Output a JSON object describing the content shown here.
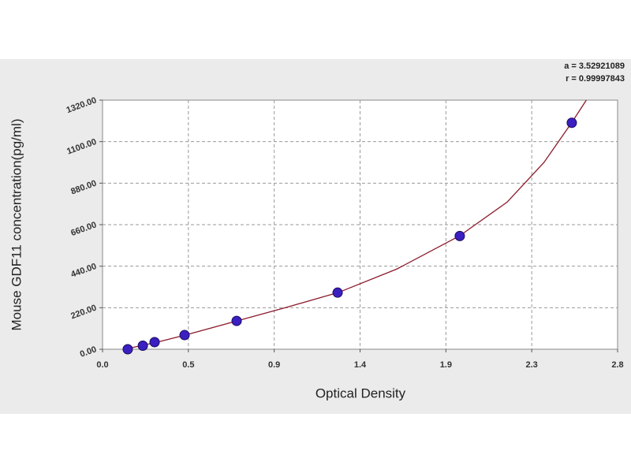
{
  "chart_data": {
    "type": "scatter",
    "xlabel": "Optical Density",
    "ylabel": "Mouse GDF11 concentration(pg/ml)",
    "annotations": [
      "a = 3.52921089",
      "r = 0.99997843"
    ],
    "xlim": [
      0,
      2.8
    ],
    "ylim": [
      0,
      1320
    ],
    "xticks": [
      {
        "value": 0,
        "label": "0.0"
      },
      {
        "value": 0.4667,
        "label": "0.5"
      },
      {
        "value": 0.9333,
        "label": "0.9"
      },
      {
        "value": 1.4,
        "label": "1.4"
      },
      {
        "value": 1.8667,
        "label": "1.9"
      },
      {
        "value": 2.3333,
        "label": "2.3"
      },
      {
        "value": 2.8,
        "label": "2.8"
      }
    ],
    "yticks": [
      {
        "value": 0,
        "label": "0.00"
      },
      {
        "value": 220,
        "label": "220.00"
      },
      {
        "value": 440,
        "label": "440.00"
      },
      {
        "value": 660,
        "label": "660.00"
      },
      {
        "value": 880,
        "label": "880.00"
      },
      {
        "value": 1100,
        "label": "1100.00"
      },
      {
        "value": 1320,
        "label": "1320.00"
      }
    ],
    "grid": true,
    "points": {
      "color": "#3b1fc0",
      "x": [
        0.137,
        0.219,
        0.283,
        0.446,
        0.729,
        1.278,
        1.942,
        2.551
      ],
      "y": [
        0,
        18.75,
        37.5,
        75,
        150,
        300,
        600,
        1200
      ]
    },
    "fit": {
      "color": "#8b1a2a",
      "x": [
        0.12,
        0.3,
        0.45,
        0.73,
        1.0,
        1.28,
        1.6,
        1.94,
        2.2,
        2.4,
        2.55,
        2.63
      ],
      "y": [
        0,
        38,
        75,
        150,
        222,
        300,
        425,
        600,
        780,
        990,
        1200,
        1320
      ]
    }
  }
}
